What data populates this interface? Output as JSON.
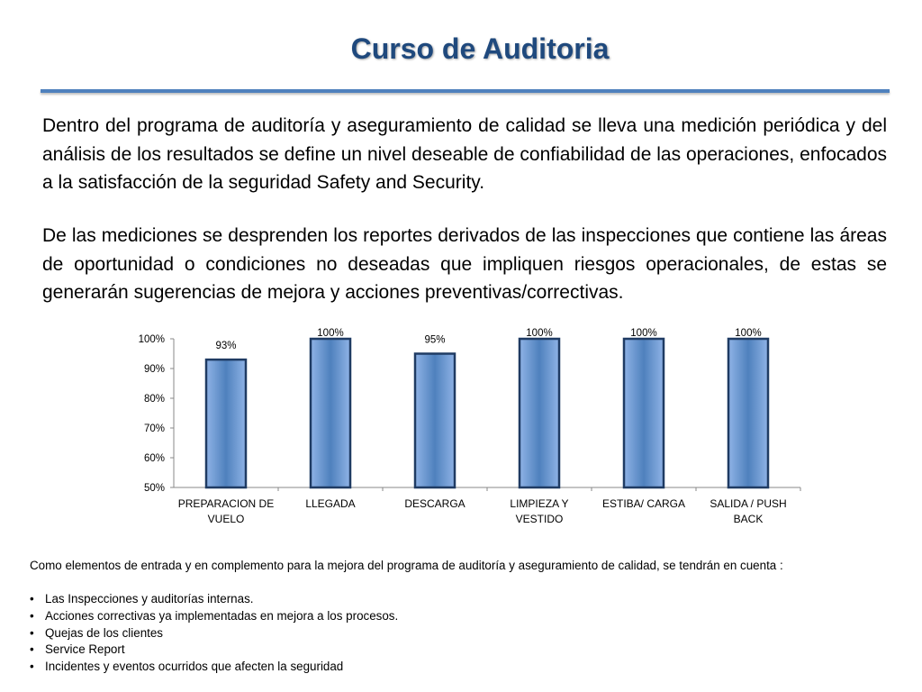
{
  "title": "Curso de Auditoria",
  "paragraphs": [
    "Dentro del programa de auditoría y aseguramiento de calidad se lleva una medición periódica y del análisis de los resultados se define un nivel deseable de confiabilidad de las operaciones, enfocados a la satisfacción de la seguridad Safety and Security.",
    "De las mediciones se desprenden los reportes derivados de las inspecciones que contiene las áreas de oportunidad o condiciones no deseadas que impliquen riesgos operacionales, de estas se generarán sugerencias de mejora y acciones preventivas/correctivas."
  ],
  "chart_data": {
    "type": "bar",
    "categories": [
      [
        "PREPARACION DE",
        "VUELO"
      ],
      [
        "LLEGADA"
      ],
      [
        "DESCARGA"
      ],
      [
        "LIMPIEZA Y",
        "VESTIDO"
      ],
      [
        "ESTIBA/ CARGA"
      ],
      [
        "SALIDA / PUSH",
        "BACK"
      ]
    ],
    "values": [
      93,
      100,
      95,
      100,
      100,
      100
    ],
    "data_labels": [
      "93%",
      "100%",
      "95%",
      "100%",
      "100%",
      "100%"
    ],
    "yticks": [
      "50%",
      "60%",
      "70%",
      "80%",
      "90%",
      "100%"
    ],
    "ylim": [
      50,
      100
    ],
    "grid": false,
    "legend": "none",
    "bar_color": "#4f81bd"
  },
  "notes": {
    "intro": "Como elementos de entrada y en complemento para la mejora del programa de auditoría y aseguramiento de calidad, se tendrán en cuenta :",
    "bullet_symbol": "•",
    "items": [
      "Las Inspecciones y auditorías internas.",
      "Acciones correctivas ya implementadas en mejora a los procesos.",
      "Quejas de los clientes",
      "Service Report",
      "Incidentes y eventos ocurridos que afecten la seguridad"
    ]
  }
}
